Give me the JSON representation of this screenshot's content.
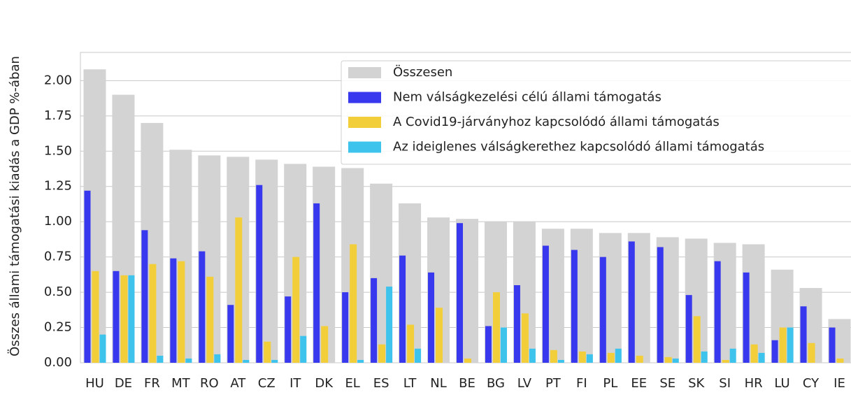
{
  "chart_data": {
    "type": "bar",
    "ylabel": "Összes állami támogatási kiadás a GDP %-ában",
    "categories": [
      "HU",
      "DE",
      "FR",
      "MT",
      "RO",
      "AT",
      "CZ",
      "IT",
      "DK",
      "EL",
      "ES",
      "LT",
      "NL",
      "BE",
      "BG",
      "LV",
      "PT",
      "FI",
      "PL",
      "EE",
      "SE",
      "SK",
      "SI",
      "HR",
      "LU",
      "CY",
      "IE"
    ],
    "series": [
      {
        "name": "Összesen",
        "color": "#d3d3d3",
        "values": [
          2.08,
          1.9,
          1.7,
          1.51,
          1.47,
          1.46,
          1.44,
          1.41,
          1.39,
          1.38,
          1.27,
          1.13,
          1.03,
          1.02,
          1.0,
          1.0,
          0.95,
          0.95,
          0.92,
          0.92,
          0.89,
          0.88,
          0.85,
          0.84,
          0.66,
          0.53,
          0.31
        ]
      },
      {
        "name": "Nem válságkezelési célú állami támogatás",
        "color": "#3838ee",
        "values": [
          1.22,
          0.65,
          0.94,
          0.74,
          0.79,
          0.41,
          1.26,
          0.47,
          1.13,
          0.5,
          0.6,
          0.76,
          0.64,
          0.99,
          0.26,
          0.55,
          0.83,
          0.8,
          0.75,
          0.86,
          0.82,
          0.48,
          0.72,
          0.64,
          0.16,
          0.4,
          0.25
        ]
      },
      {
        "name": "A Covid19-járványhoz kapcsolódó állami támogatás",
        "color": "#f2cf3a",
        "values": [
          0.65,
          0.62,
          0.7,
          0.72,
          0.61,
          1.03,
          0.15,
          0.75,
          0.26,
          0.84,
          0.13,
          0.27,
          0.39,
          0.03,
          0.5,
          0.35,
          0.09,
          0.08,
          0.07,
          0.05,
          0.04,
          0.33,
          0.02,
          0.13,
          0.25,
          0.14,
          0.03
        ]
      },
      {
        "name": "Az ideiglenes válságkerethez kapcsolódó állami támogatás",
        "color": "#3ec4ec",
        "values": [
          0.2,
          0.62,
          0.05,
          0.03,
          0.06,
          0.02,
          0.02,
          0.19,
          0,
          0.02,
          0.54,
          0.1,
          0,
          0,
          0.25,
          0.1,
          0.02,
          0.06,
          0.1,
          0,
          0.03,
          0.08,
          0.1,
          0.07,
          0.25,
          0,
          0
        ]
      }
    ],
    "ylim": [
      0,
      2.2
    ],
    "yticks": [
      {
        "value": 0,
        "label": "0.00"
      },
      0.25,
      {
        "value": 0.5,
        "label": "0.50"
      },
      0.75,
      {
        "value": 1,
        "label": "1.00"
      },
      1.25,
      {
        "value": 1.5,
        "label": "1.50"
      },
      1.75,
      {
        "value": 2,
        "label": "2.00"
      }
    ],
    "grid": true,
    "legend": "upper right"
  }
}
